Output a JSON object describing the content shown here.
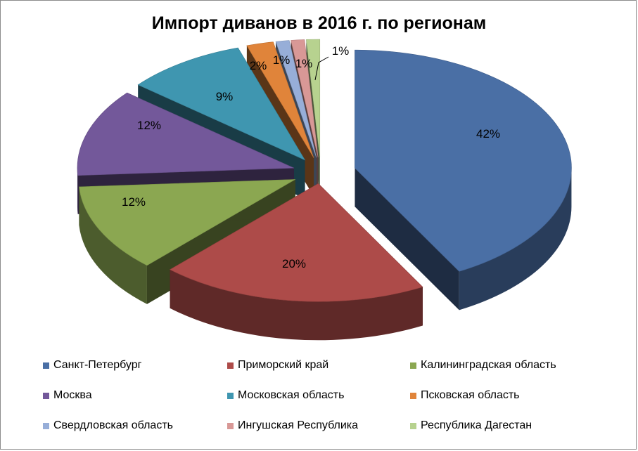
{
  "chart_data": {
    "type": "pie",
    "title": "Импорт диванов в 2016 г.  по регионам",
    "slices": [
      {
        "label": "Санкт-Петербург",
        "value": 42,
        "value_label": "42%",
        "color": "#4a6fa5"
      },
      {
        "label": "Приморский край",
        "value": 20,
        "value_label": "20%",
        "color": "#ad4b49"
      },
      {
        "label": "Калининградская область",
        "value": 12,
        "value_label": "12%",
        "color": "#8ba751"
      },
      {
        "label": "Москва",
        "value": 12,
        "value_label": "12%",
        "color": "#73589a"
      },
      {
        "label": "Московская область",
        "value": 9,
        "value_label": "9%",
        "color": "#3f96b0"
      },
      {
        "label": "Псковская область",
        "value": 2,
        "value_label": "2%",
        "color": "#e0843a"
      },
      {
        "label": "Свердловская область",
        "value": 1,
        "value_label": "1%",
        "color": "#97aed8"
      },
      {
        "label": "Ингушская Республика",
        "value": 1,
        "value_label": "1%",
        "color": "#d89896"
      },
      {
        "label": "Республика Дагестан",
        "value": 1,
        "value_label": "1%",
        "color": "#b7d28f"
      }
    ],
    "exploded": true,
    "three_d": true,
    "legend_position": "bottom"
  }
}
